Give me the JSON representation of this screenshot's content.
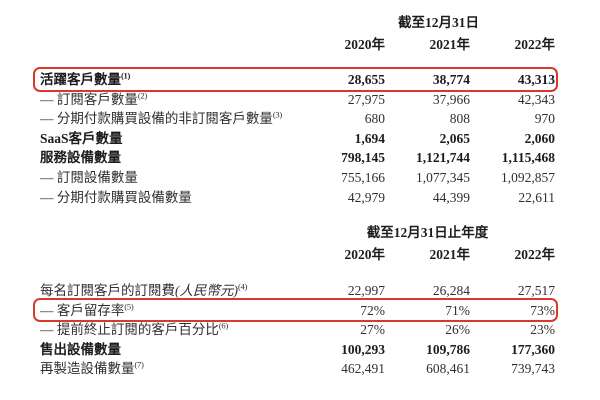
{
  "colors": {
    "highlight": "#d9382c",
    "ink": "#332e2f",
    "ink_bold": "#1f1b1c",
    "page_bg": "#ffffff"
  },
  "table1": {
    "period_header": "截至12月31日",
    "years": [
      "2020年",
      "2021年",
      "2022年"
    ],
    "rows": [
      {
        "label": "活躍客戶數量",
        "sup": "(1)",
        "values": [
          "28,655",
          "38,774",
          "43,313"
        ]
      },
      {
        "label": "— 訂閱客戶數量",
        "sup": "(2)",
        "values": [
          "27,975",
          "37,966",
          "42,343"
        ]
      },
      {
        "label": "— 分期付款購買設備的非訂閱客戶數量",
        "sup": "(3)",
        "values": [
          "680",
          "808",
          "970"
        ]
      },
      {
        "label": "SaaS客戶數量",
        "sup": "",
        "values": [
          "1,694",
          "2,065",
          "2,060"
        ]
      },
      {
        "label": "服務設備數量",
        "sup": "",
        "values": [
          "798,145",
          "1,121,744",
          "1,115,468"
        ]
      },
      {
        "label": "— 訂閱設備數量",
        "sup": "",
        "values": [
          "755,166",
          "1,077,345",
          "1,092,857"
        ]
      },
      {
        "label": "— 分期付款購買設備數量",
        "sup": "",
        "values": [
          "42,979",
          "44,399",
          "22,611"
        ]
      }
    ]
  },
  "table2": {
    "period_header": "截至12月31日止年度",
    "years": [
      "2020年",
      "2021年",
      "2022年"
    ],
    "rows": [
      {
        "label": "每名訂閱客戶的訂閱費",
        "label_italic": "(人民幣元)",
        "sup": "(4)",
        "values": [
          "22,997",
          "26,284",
          "27,517"
        ]
      },
      {
        "label": "— 客戶留存率",
        "sup": "(5)",
        "values": [
          "72%",
          "71%",
          "73%"
        ]
      },
      {
        "label": "— 提前終止訂閱的客戶百分比",
        "sup": "(6)",
        "values": [
          "27%",
          "26%",
          "23%"
        ]
      },
      {
        "label": "售出設備數量",
        "sup": "",
        "values": [
          "100,293",
          "109,786",
          "177,360"
        ]
      },
      {
        "label": "再製造設備數量",
        "sup": "(7)",
        "values": [
          "462,491",
          "608,461",
          "739,743"
        ]
      }
    ]
  }
}
